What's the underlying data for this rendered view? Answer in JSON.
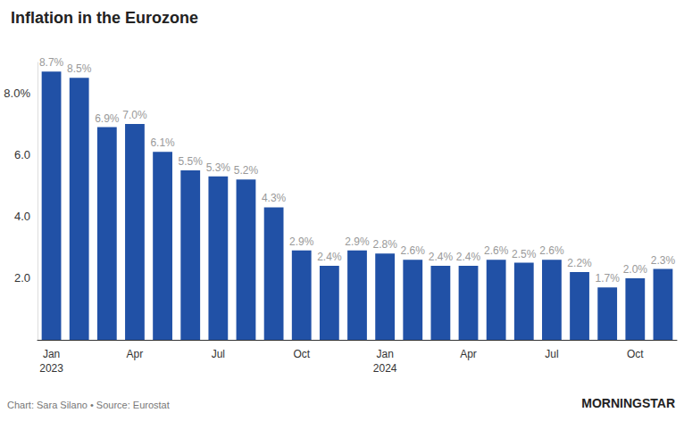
{
  "chart_data": {
    "type": "bar",
    "title": "Inflation in the Eurozone",
    "source": "Chart: Sara Silano • Source: Eurostat",
    "logo": "MORNINGSTAR",
    "categories": [
      "Jan\n2023",
      null,
      null,
      "Apr",
      null,
      null,
      "Jul",
      null,
      null,
      "Oct",
      null,
      null,
      "Jan\n2024",
      null,
      null,
      "Apr",
      null,
      null,
      "Jul",
      null,
      null,
      "Oct",
      null
    ],
    "values": [
      8.7,
      8.5,
      6.9,
      7.0,
      6.1,
      5.5,
      5.3,
      5.2,
      4.3,
      2.9,
      2.4,
      2.9,
      2.8,
      2.6,
      2.4,
      2.4,
      2.6,
      2.5,
      2.6,
      2.2,
      1.7,
      2.0,
      2.3
    ],
    "value_labels": [
      "8.7%",
      "8.5%",
      "6.9%",
      "7.0%",
      "6.1%",
      "5.5%",
      "5.3%",
      "5.2%",
      "4.3%",
      "2.9%",
      "2.4%",
      "2.9%",
      "2.8%",
      "2.6%",
      "2.4%",
      "2.4%",
      "2.6%",
      "2.5%",
      "2.6%",
      "2.2%",
      "1.7%",
      "2.0%",
      "2.3%"
    ],
    "color": "#2151a6",
    "ylim": [
      0,
      9
    ],
    "yticks": [
      {
        "value": 2,
        "label": "2.0"
      },
      {
        "value": 4,
        "label": "4.0"
      },
      {
        "value": 6,
        "label": "6.0"
      },
      {
        "value": 8,
        "label": "8.0%"
      }
    ],
    "grid": false,
    "data_labels": true
  }
}
